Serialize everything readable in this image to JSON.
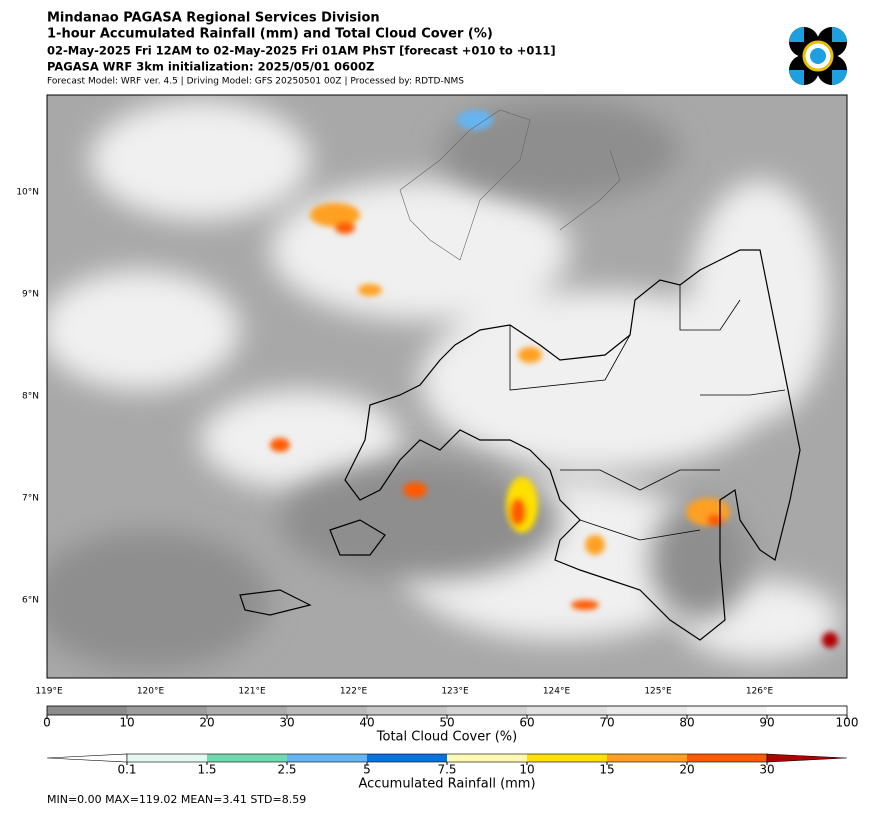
{
  "header": {
    "title": "Mindanao PAGASA Regional Services Division",
    "subtitle": "1-hour Accumulated Rainfall (mm) and Total Cloud Cover (%)",
    "period": "02-May-2025 Fri 12AM to 02-May-2025 Fri 01AM PhST [forecast +010 to +011]",
    "init": "PAGASA WRF 3km initialization: 2025/05/01 0600Z",
    "model": "Forecast Model: WRF ver. 4.5 | Driving Model: GFS 20250501 00Z | Processed by: RDTD-NMS"
  },
  "map": {
    "lon_labels": [
      "119°E",
      "120°E",
      "121°E",
      "122°E",
      "123°E",
      "124°E",
      "125°E",
      "126°E"
    ],
    "lat_labels": [
      "10°N",
      "9°N",
      "8°N",
      "7°N",
      "6°N"
    ]
  },
  "cloud_colorbar": {
    "label": "Total Cloud Cover (%)",
    "lim": [
      0,
      100
    ],
    "ticks": [
      0,
      10,
      20,
      30,
      40,
      50,
      60,
      70,
      80,
      90,
      100
    ],
    "colors": [
      "#8c8c8c",
      "#9c9c9c",
      "#acacac",
      "#bababa",
      "#c8c8c8",
      "#d4d4d4",
      "#e0e0e0",
      "#eaeaea",
      "#f4f4f4",
      "#ffffff"
    ]
  },
  "rain_colorbar": {
    "label": "Accumulated Rainfall (mm)",
    "ticks": [
      0.1,
      1.5,
      2.5,
      5,
      7.5,
      10,
      15,
      20,
      30
    ],
    "colors": [
      "#ffffff",
      "#e2f8f0",
      "#72d8b0",
      "#66b4f0",
      "#0872e0",
      "#fff8b4",
      "#ffe000",
      "#ffa020",
      "#ff5a00",
      "#b00000"
    ]
  },
  "stats": "MIN=0.00   MAX=119.02   MEAN=3.41   STD=8.59"
}
